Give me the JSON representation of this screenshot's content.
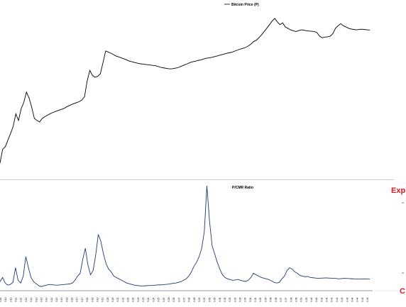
{
  "chart_data": [
    {
      "type": "line",
      "legend": [
        "Bitcoin Price (P)"
      ],
      "yscale": "log",
      "grid": false,
      "legend_position": "top-center",
      "series": [
        {
          "name": "Bitcoin Price (P)",
          "color": "#000000",
          "values": [
            0.06,
            0.2,
            0.25,
            0.45,
            0.8,
            1.5,
            4.5,
            2.5,
            7,
            12,
            30,
            18,
            8,
            3,
            2.5,
            2.2,
            3,
            3.5,
            4,
            4.5,
            5,
            5.5,
            6,
            6.5,
            7,
            8,
            9,
            10,
            11,
            12,
            13,
            15,
            20,
            80,
            200,
            130,
            110,
            120,
            150,
            400,
            1100,
            1000,
            900,
            800,
            700,
            650,
            600,
            550,
            500,
            450,
            430,
            400,
            380,
            360,
            350,
            340,
            330,
            320,
            310,
            300,
            280,
            260,
            250,
            240,
            230,
            230,
            240,
            250,
            270,
            300,
            330,
            360,
            400,
            430,
            450,
            480,
            500,
            540,
            580,
            600,
            620,
            660,
            700,
            750,
            800,
            850,
            900,
            950,
            1000,
            1100,
            1200,
            1300,
            1400,
            1500,
            1700,
            2000,
            2500,
            2800,
            3500,
            4500,
            6000,
            8000,
            11000,
            15000,
            19000,
            14000,
            11000,
            13000,
            9000,
            8000,
            7000,
            6500,
            6000,
            6500,
            7000,
            6800,
            6500,
            6300,
            6200,
            6000,
            5500,
            4000,
            3500,
            3700,
            3800,
            4000,
            5000,
            8000,
            10000,
            12000,
            10000,
            9000,
            8000,
            7500,
            7200,
            7000,
            7300,
            7400,
            7200,
            7000,
            6900
          ]
        }
      ]
    },
    {
      "type": "line",
      "title": "P/CMR Ratio",
      "grid": false,
      "series": [
        {
          "name": "P/CMR Ratio",
          "color": "#1f3a6e",
          "values": [
            0.6,
            0.9,
            0.5,
            0.35,
            0.4,
            0.55,
            1.6,
            0.7,
            0.5,
            1.0,
            2.4,
            1.6,
            0.9,
            0.6,
            0.45,
            0.3,
            0.25,
            0.3,
            0.35,
            0.4,
            0.38,
            0.36,
            0.35,
            0.36,
            0.38,
            0.4,
            0.42,
            0.44,
            0.5,
            0.7,
            1.0,
            1.2,
            2.2,
            3.0,
            1.8,
            1.1,
            1.4,
            2.5,
            4.0,
            3.5,
            2.6,
            1.9,
            1.5,
            1.3,
            1.0,
            0.9,
            0.8,
            0.7,
            0.6,
            0.5,
            0.45,
            0.4,
            0.35,
            0.32,
            0.3,
            0.29,
            0.3,
            0.31,
            0.32,
            0.33,
            0.35,
            0.36,
            0.37,
            0.38,
            0.4,
            0.42,
            0.45,
            0.48,
            0.5,
            0.55,
            0.6,
            0.7,
            0.8,
            1.0,
            1.3,
            1.7,
            2.0,
            2.4,
            3.0,
            4.2,
            7.5,
            5.0,
            3.2,
            2.6,
            2.0,
            1.5,
            1.1,
            0.9,
            0.8,
            0.75,
            0.7,
            0.72,
            0.76,
            0.7,
            0.65,
            0.62,
            0.7,
            0.9,
            1.2,
            1.1,
            1.0,
            0.9,
            0.85,
            0.8,
            0.75,
            0.65,
            0.55,
            0.5,
            0.55,
            0.8,
            1.0,
            1.4,
            1.6,
            1.5,
            1.3,
            1.2,
            1.05,
            1.0,
            0.95,
            0.98,
            0.9,
            0.88,
            0.86,
            0.84,
            0.85,
            0.86,
            0.87,
            0.86,
            0.85,
            0.84,
            0.83,
            0.8,
            0.82,
            0.84,
            0.83,
            0.82,
            0.81,
            0.8,
            0.79,
            0.78,
            0.79,
            0.8,
            0.79,
            0.78
          ]
        }
      ],
      "side_labels": [
        "Exp",
        "C"
      ],
      "tick_labels": [
        "9-09",
        "3-10",
        "9-10",
        "3-11",
        "9-11",
        "3-12",
        "9-12",
        "3-13",
        "9-13",
        "3-14",
        "9-14",
        "3-15",
        "9-15",
        "3-16",
        "9-16",
        "3-17",
        "9-17",
        "3-18",
        "9-18",
        "3-19",
        "9-19",
        "3-20",
        "9-20",
        "3-21",
        "9-21",
        "3-22",
        "9-22",
        "3-23",
        "9-23",
        "3-24",
        "9-24",
        "3-25",
        "9-25",
        "3-26",
        "9-26",
        "3-27",
        "9-27",
        "3-28",
        "9-28",
        "3-29",
        "9-29",
        "3-30",
        "9-30",
        "3-31",
        "9-31",
        "3-32",
        "9-32",
        "3-33",
        "9-33",
        "3-34",
        "9-34",
        "3-35",
        "9-35",
        "3-36",
        "9-36",
        "3-37",
        "9-37",
        "3-38",
        "9-38",
        "3-39",
        "9-39",
        "3-40",
        "9-40",
        "3-41",
        "9-41",
        "3-42",
        "9-42",
        "3-43",
        "9-43",
        "3-44",
        "9-44",
        "3-45",
        "9-45"
      ]
    }
  ]
}
